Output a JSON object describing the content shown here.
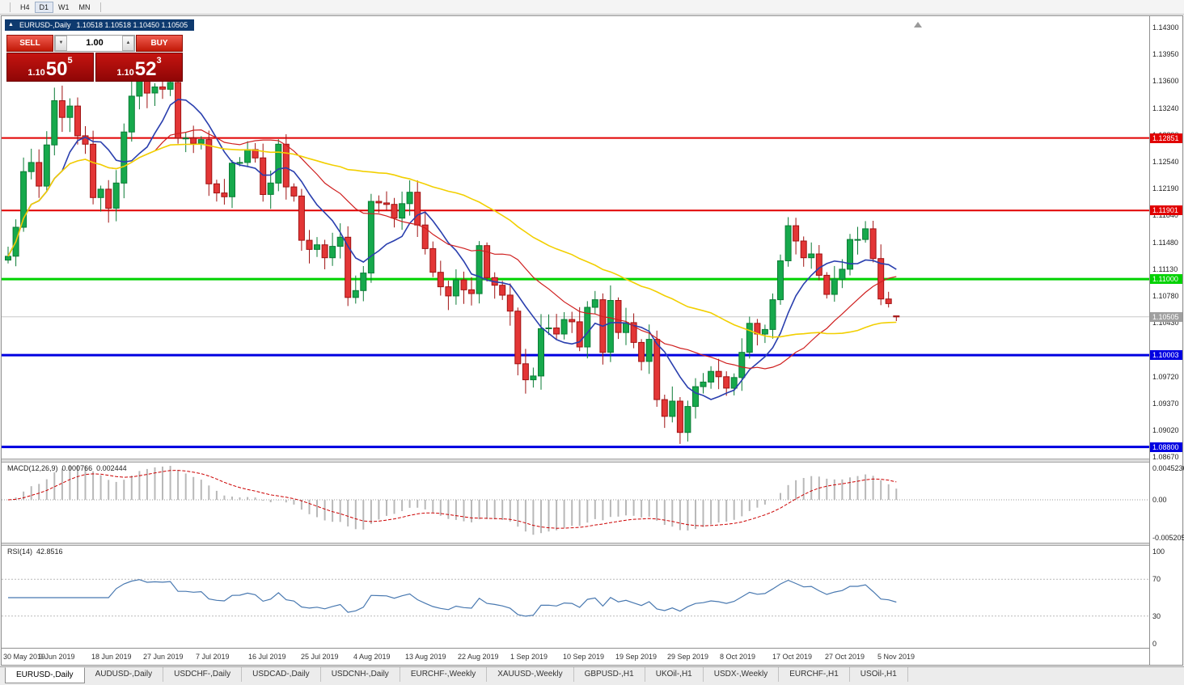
{
  "toolbar": {
    "timeframes": [
      "H4",
      "D1",
      "W1",
      "MN"
    ],
    "active_timeframe": "D1"
  },
  "chart_header": {
    "collapse_icon": "▲",
    "symbol": "EURUSD-,Daily",
    "ohlc_text": "1.10518 1.10518 1.10450 1.10505"
  },
  "trade_panel": {
    "sell_label": "SELL",
    "buy_label": "BUY",
    "volume": "1.00",
    "spin_up_icon": "▲",
    "spin_down_icon": "▼",
    "sell": {
      "base": "1.10",
      "big": "50",
      "sup": "5"
    },
    "buy": {
      "base": "1.10",
      "big": "52",
      "sup": "3"
    }
  },
  "colors": {
    "up": "#16a94c",
    "up_border": "#0b7c36",
    "down": "#e33636",
    "down_border": "#a01212",
    "current_line": "#c8c8c8",
    "current_badge": "#a0a0a0",
    "axis_text": "#222222"
  },
  "chart_data": {
    "type": "candlestick",
    "symbol": "EURUSD-",
    "timeframe": "Daily",
    "ohlc_current": {
      "o": 1.10518,
      "h": 1.10518,
      "l": 1.1045,
      "c": 1.10505
    },
    "current_price": 1.10505,
    "current_price_label": "1.10505",
    "first_open": 1.1125,
    "closes": [
      1.113,
      1.1168,
      1.1241,
      1.1253,
      1.1222,
      1.1276,
      1.1334,
      1.1312,
      1.1327,
      1.1288,
      1.1277,
      1.1207,
      1.1218,
      1.1193,
      1.1226,
      1.1293,
      1.134,
      1.1365,
      1.1344,
      1.1352,
      1.1349,
      1.1358,
      1.1285,
      1.1285,
      1.1278,
      1.1283,
      1.1225,
      1.1213,
      1.1208,
      1.1252,
      1.1253,
      1.127,
      1.1259,
      1.1211,
      1.1226,
      1.1277,
      1.1221,
      1.1209,
      1.1151,
      1.1139,
      1.1145,
      1.1128,
      1.1143,
      1.1155,
      1.1076,
      1.1085,
      1.1108,
      1.1202,
      1.12,
      1.1198,
      1.118,
      1.1199,
      1.1214,
      1.1171,
      1.114,
      1.1109,
      1.109,
      1.1078,
      1.1099,
      1.1086,
      1.1081,
      1.1144,
      1.1102,
      1.1092,
      1.1079,
      1.1058,
      1.0989,
      1.0968,
      1.0973,
      1.1035,
      1.1036,
      1.1028,
      1.1047,
      1.1044,
      1.1011,
      1.1063,
      1.1073,
      1.1004,
      1.1072,
      1.103,
      1.1043,
      1.1017,
      1.0992,
      1.1021,
      1.0942,
      1.092,
      1.094,
      1.0899,
      1.0933,
      1.0959,
      1.0965,
      1.0979,
      1.0972,
      1.0957,
      1.0971,
      1.1004,
      1.1042,
      1.1028,
      1.1034,
      1.1073,
      1.1124,
      1.117,
      1.115,
      1.1128,
      1.1133,
      1.1105,
      1.108,
      1.11,
      1.1113,
      1.1152,
      1.1152,
      1.1166,
      1.1127,
      1.1074,
      1.1068,
      1.10505
    ],
    "y_ticks": [
      "1.14300",
      "1.13950",
      "1.13600",
      "1.13240",
      "1.12890",
      "1.12540",
      "1.12190",
      "1.11840",
      "1.11480",
      "1.11130",
      "1.10780",
      "1.10430",
      "1.09720",
      "1.09370",
      "1.09020",
      "1.08670"
    ],
    "h_lines": [
      {
        "price": 1.12851,
        "label": "1.12851",
        "color": "#e10000",
        "width": 2
      },
      {
        "price": 1.11901,
        "label": "1.11901",
        "color": "#e10000",
        "width": 2
      },
      {
        "price": 1.11,
        "label": "1.11000",
        "color": "#00d200",
        "width": 3
      },
      {
        "price": 1.10003,
        "label": "1.10003",
        "color": "#0000e1",
        "width": 3
      },
      {
        "price": 1.088,
        "label": "1.08800",
        "color": "#0000e1",
        "width": 3
      }
    ],
    "moving_averages": [
      {
        "type": "sma",
        "period": 8,
        "color": "#2a3fae",
        "width": 1.6
      },
      {
        "type": "sma",
        "period": 20,
        "color": "#cf1f1f",
        "width": 1.2
      },
      {
        "type": "sma",
        "period": 45,
        "color": "#f2cf00",
        "width": 1.6
      }
    ],
    "x_dates": [
      "30 May 2019",
      "9 Jun 2019",
      "18 Jun 2019",
      "27 Jun 2019",
      "7 Jul 2019",
      "16 Jul 2019",
      "25 Jul 2019",
      "4 Aug 2019",
      "13 Aug 2019",
      "22 Aug 2019",
      "1 Sep 2019",
      "10 Sep 2019",
      "19 Sep 2019",
      "29 Sep 2019",
      "8 Oct 2019",
      "17 Oct 2019",
      "27 Oct 2019",
      "5 Nov 2019"
    ],
    "indicators": {
      "macd": {
        "title": "MACD(12,26,9)",
        "value_main": "0.000766",
        "value_signal": "0.002444",
        "fast": 12,
        "slow": 26,
        "signal": 9,
        "axis_labels": [
          "0.0045236",
          "0.00",
          "-0.0052057"
        ],
        "histogram_color": "#b8b8b8",
        "signal_color": "#cc0000"
      },
      "rsi": {
        "title": "RSI(14)",
        "value": "42.8516",
        "period": 14,
        "levels": [
          70,
          30
        ],
        "axis_labels": [
          "100",
          "70",
          "30",
          "0"
        ],
        "line_color": "#4878b0"
      }
    }
  },
  "bottom_tabs": {
    "items": [
      {
        "label": "EURUSD-,Daily",
        "active": true
      },
      {
        "label": "AUDUSD-,Daily",
        "active": false
      },
      {
        "label": "USDCHF-,Daily",
        "active": false
      },
      {
        "label": "USDCAD-,Daily",
        "active": false
      },
      {
        "label": "USDCNH-,Daily",
        "active": false
      },
      {
        "label": "EURCHF-,Weekly",
        "active": false
      },
      {
        "label": "XAUUSD-,Weekly",
        "active": false
      },
      {
        "label": "GBPUSD-,H1",
        "active": false
      },
      {
        "label": "UKOil-,H1",
        "active": false
      },
      {
        "label": "USDX-,Weekly",
        "active": false
      },
      {
        "label": "EURCHF-,H1",
        "active": false
      },
      {
        "label": "USOil-,H1",
        "active": false
      }
    ]
  }
}
